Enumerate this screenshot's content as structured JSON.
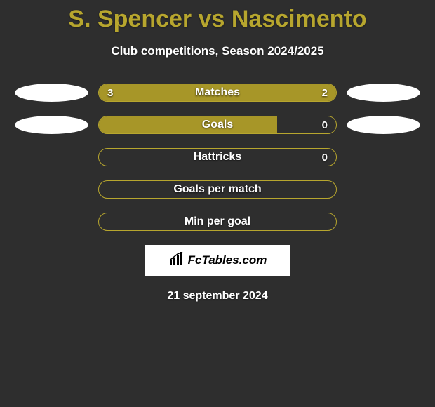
{
  "header": {
    "title": "S. Spencer vs Nascimento",
    "subtitle": "Club competitions, Season 2024/2025",
    "title_color": "#b7a62e",
    "subtitle_color": "#ffffff"
  },
  "theme": {
    "background_color": "#2e2e2e",
    "bar_border_color": "#b7a62e",
    "bar_fill_color": "#a79628",
    "oval_color": "#ffffff",
    "text_color": "#ffffff"
  },
  "stats": [
    {
      "label": "Matches",
      "left_value": "3",
      "right_value": "2",
      "left_pct": 60,
      "right_pct": 40,
      "show_left_oval": true,
      "show_right_oval": true,
      "show_values": true
    },
    {
      "label": "Goals",
      "left_value": "",
      "right_value": "0",
      "left_pct": 75,
      "right_pct": 0,
      "show_left_oval": true,
      "show_right_oval": true,
      "show_values": true
    },
    {
      "label": "Hattricks",
      "left_value": "",
      "right_value": "0",
      "left_pct": 0,
      "right_pct": 0,
      "show_left_oval": false,
      "show_right_oval": false,
      "show_values": true
    },
    {
      "label": "Goals per match",
      "left_value": "",
      "right_value": "",
      "left_pct": 0,
      "right_pct": 0,
      "show_left_oval": false,
      "show_right_oval": false,
      "show_values": false
    },
    {
      "label": "Min per goal",
      "left_value": "",
      "right_value": "",
      "left_pct": 0,
      "right_pct": 0,
      "show_left_oval": false,
      "show_right_oval": false,
      "show_values": false
    }
  ],
  "footer": {
    "logo_text": "FcTables.com",
    "date": "21 september 2024"
  }
}
